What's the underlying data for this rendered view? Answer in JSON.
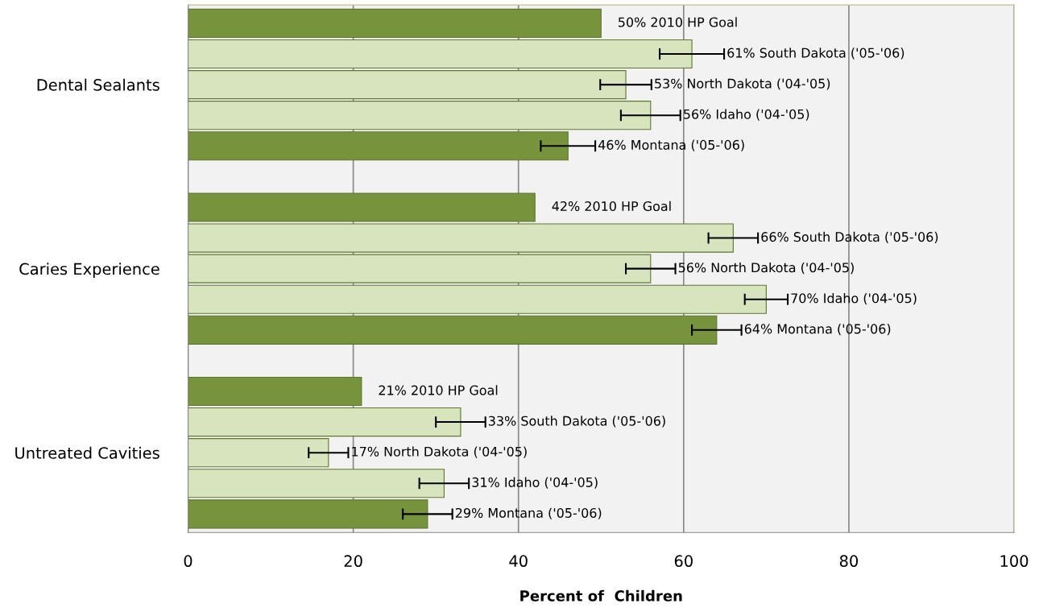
{
  "chart_data": {
    "type": "bar",
    "orientation": "horizontal",
    "categories": [
      null,
      null,
      "Dental Sealants",
      null,
      null,
      null,
      null,
      null,
      "Caries Experience",
      null,
      null,
      null,
      null,
      null,
      "Untreated Cavities",
      null,
      null
    ],
    "values": [
      50,
      61,
      53,
      56,
      46,
      null,
      42,
      66,
      56,
      70,
      64,
      null,
      21,
      33,
      17,
      31,
      29
    ],
    "colors": [
      "#77933c",
      "#d7e4bd",
      "#d7e4bd",
      "#d7e4bd",
      "#77933c",
      null,
      "#77933c",
      "#d7e4bd",
      "#d7e4bd",
      "#d7e4bd",
      "#77933c",
      null,
      "#77933c",
      "#d7e4bd",
      "#d7e4bd",
      "#d7e4bd",
      "#77933c"
    ],
    "errors": [
      null,
      3.9,
      3.1,
      3.6,
      3.3,
      null,
      null,
      3.0,
      3.0,
      2.6,
      3.0,
      null,
      null,
      3.0,
      2.4,
      3.0,
      3.0
    ],
    "value_labels": [
      "50% 2010 HP Goal",
      "61% South Dakota ('05-'06)",
      "53% North Dakota ('04-'05)",
      "56% Idaho ('04-'05)",
      "46% Montana ('05-'06)",
      null,
      "42% 2010 HP Goal",
      "66% South Dakota ('05-'06)",
      "56% North Dakota ('04-'05)",
      "70% Idaho ('04-'05)",
      "64% Montana ('05-'06)",
      null,
      "21% 2010 HP Goal",
      "33% South Dakota ('05-'06)",
      "17% North Dakota ('04-'05)",
      "31% Idaho ('04-'05)",
      "29% Montana ('05-'06)"
    ],
    "xlabel": "Percent of  Children",
    "xlim": [
      0,
      100
    ],
    "xticks": [
      0,
      20,
      40,
      60,
      80,
      100
    ],
    "grid": "x"
  }
}
